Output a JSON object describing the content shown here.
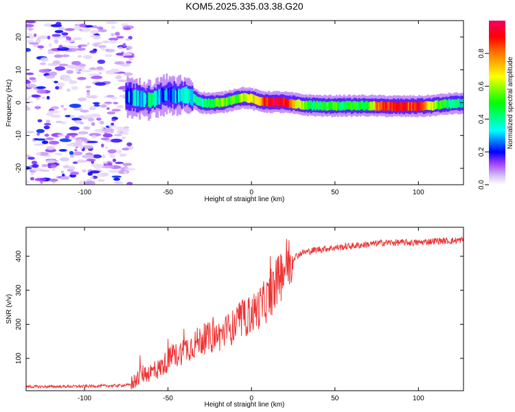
{
  "title": "KOM5.2025.335.03.38.G20",
  "chart_data": [
    {
      "type": "heatmap",
      "panel": "spectrogram",
      "xlabel": "Height of straight line (km)",
      "ylabel": "Frequency (Hz)",
      "xlim": [
        -135,
        127
      ],
      "ylim": [
        -25,
        25
      ],
      "xticks": [
        -100,
        -50,
        0,
        50,
        100
      ],
      "yticks": [
        -20,
        -10,
        0,
        10,
        20
      ],
      "description_of_data": "Dominant frequency ridge vs height; noisy scattered energy below -72 km",
      "ridge": {
        "x": [
          -75,
          -70,
          -65,
          -60,
          -55,
          -50,
          -45,
          -40,
          -35,
          -30,
          -25,
          -20,
          -15,
          -10,
          -5,
          0,
          5,
          10,
          15,
          20,
          25,
          30,
          35,
          40,
          45,
          50,
          55,
          60,
          65,
          70,
          75,
          80,
          85,
          90,
          95,
          100,
          105,
          110,
          115,
          120,
          127
        ],
        "y": [
          1.8,
          1.5,
          1.0,
          0.8,
          2.0,
          2.5,
          2.0,
          2.5,
          1.5,
          0.0,
          -0.2,
          -0.1,
          0.3,
          1.0,
          1.5,
          1.2,
          0.5,
          0.2,
          0.2,
          0.1,
          -0.2,
          -0.6,
          -0.8,
          -0.9,
          -1.0,
          -1.0,
          -0.9,
          -1.0,
          -0.9,
          -0.9,
          -1.0,
          -1.0,
          -1.1,
          -1.1,
          -1.1,
          -1.1,
          -1.0,
          -0.8,
          -0.5,
          -0.3,
          -0.2
        ],
        "amplitude": [
          0.25,
          0.3,
          0.3,
          0.35,
          0.3,
          0.25,
          0.35,
          0.3,
          0.35,
          0.4,
          0.45,
          0.6,
          0.55,
          0.5,
          0.6,
          0.65,
          0.75,
          0.9,
          0.95,
          0.9,
          0.7,
          0.6,
          0.5,
          0.45,
          0.5,
          0.5,
          0.45,
          0.5,
          0.45,
          0.45,
          0.8,
          0.85,
          0.9,
          0.95,
          0.85,
          0.9,
          0.7,
          0.6,
          0.5,
          0.4,
          0.35
        ]
      },
      "colorbar": {
        "label": "Normalized spectral amplitude",
        "range": [
          0,
          1
        ],
        "ticks": [
          "0.0",
          "0.2",
          "0.4",
          "0.6",
          "0.8"
        ]
      }
    },
    {
      "type": "line",
      "panel": "snr",
      "xlabel": "Height of straight line (km)",
      "ylabel": "SNR (v/v)",
      "xlim": [
        -135,
        127
      ],
      "ylim": [
        5,
        485
      ],
      "xticks": [
        -100,
        -50,
        0,
        50,
        100
      ],
      "yticks": [
        100,
        200,
        300,
        400
      ],
      "color": "#ee3333",
      "x": [
        -135,
        -120,
        -100,
        -80,
        -73,
        -70,
        -65,
        -60,
        -55,
        -50,
        -45,
        -40,
        -35,
        -30,
        -25,
        -20,
        -15,
        -10,
        -5,
        0,
        5,
        10,
        15,
        20,
        25,
        30,
        40,
        50,
        60,
        70,
        80,
        90,
        100,
        110,
        120,
        127
      ],
      "y": [
        17,
        17,
        18,
        20,
        22,
        35,
        55,
        60,
        70,
        95,
        110,
        125,
        140,
        155,
        160,
        165,
        180,
        195,
        215,
        230,
        250,
        275,
        320,
        370,
        395,
        410,
        420,
        425,
        430,
        435,
        440,
        440,
        440,
        445,
        445,
        448
      ]
    }
  ]
}
